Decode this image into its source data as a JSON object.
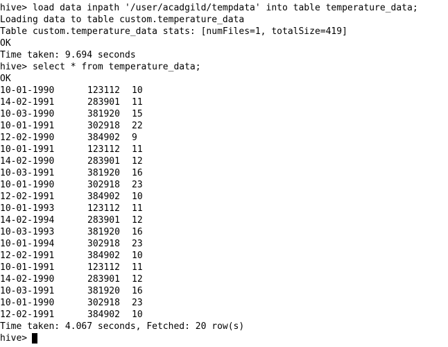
{
  "terminal": {
    "before": [
      "hive> load data inpath '/user/acadgild/tempdata' into table temperature_data;",
      "Loading data to table custom.temperature_data",
      "Table custom.temperature_data stats: [numFiles=1, totalSize=419]",
      "OK",
      "Time taken: 9.694 seconds",
      "hive> select * from temperature_data;",
      "OK"
    ],
    "rows": [
      [
        "10-01-1990",
        123112,
        10
      ],
      [
        "14-02-1991",
        283901,
        11
      ],
      [
        "10-03-1990",
        381920,
        15
      ],
      [
        "10-01-1991",
        302918,
        22
      ],
      [
        "12-02-1990",
        384902,
        9
      ],
      [
        "10-01-1991",
        123112,
        11
      ],
      [
        "14-02-1990",
        283901,
        12
      ],
      [
        "10-03-1991",
        381920,
        16
      ],
      [
        "10-01-1990",
        302918,
        23
      ],
      [
        "12-02-1991",
        384902,
        10
      ],
      [
        "10-01-1993",
        123112,
        11
      ],
      [
        "14-02-1994",
        283901,
        12
      ],
      [
        "10-03-1993",
        381920,
        16
      ],
      [
        "10-01-1994",
        302918,
        23
      ],
      [
        "12-02-1991",
        384902,
        10
      ],
      [
        "10-01-1991",
        123112,
        11
      ],
      [
        "14-02-1990",
        283901,
        12
      ],
      [
        "10-03-1991",
        381920,
        16
      ],
      [
        "10-01-1990",
        302918,
        23
      ],
      [
        "12-02-1991",
        384902,
        10
      ]
    ],
    "after": "Time taken: 4.067 seconds, Fetched: 20 row(s)",
    "prompt": "hive>"
  }
}
